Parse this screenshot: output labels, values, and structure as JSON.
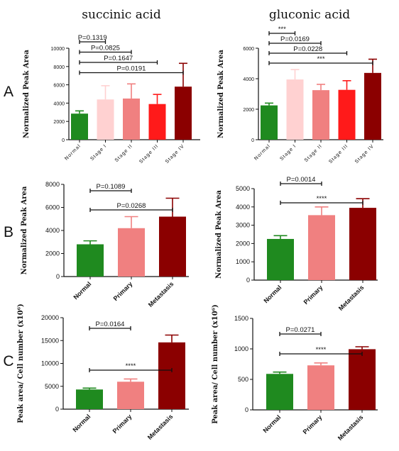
{
  "column_titles": [
    "succinic acid",
    "gluconic acid"
  ],
  "row_labels": [
    "A",
    "B",
    "C"
  ],
  "chart_data": [
    {
      "type": "bar",
      "panel": "A",
      "compound": "succinic acid",
      "categories": [
        "Normal",
        "Stage I",
        "Stage II",
        "Stage III",
        "Stage IV"
      ],
      "values": [
        2850,
        4400,
        4500,
        3900,
        5800
      ],
      "errors": [
        300,
        1500,
        1600,
        1050,
        2550
      ],
      "colors": [
        "#1f8a1f",
        "#ffd1d1",
        "#f08080",
        "#ff1a1a",
        "#8b0000"
      ],
      "ylabel": "Normalized Peak Area",
      "ylim": [
        0,
        10000
      ],
      "yticks": [
        0,
        2000,
        4000,
        6000,
        8000,
        10000
      ],
      "comparisons": [
        {
          "from": 0,
          "to": 1,
          "label": "P=0.1319"
        },
        {
          "from": 0,
          "to": 2,
          "label": "P=0.0825"
        },
        {
          "from": 0,
          "to": 3,
          "label": "P=0.1647"
        },
        {
          "from": 0,
          "to": 4,
          "label": "P=0.0191"
        }
      ]
    },
    {
      "type": "bar",
      "panel": "A",
      "compound": "gluconic acid",
      "categories": [
        "Normal",
        "Stage I",
        "Stage II",
        "Stage III",
        "Stage IV"
      ],
      "values": [
        2250,
        3950,
        3250,
        3270,
        4380
      ],
      "errors": [
        150,
        650,
        380,
        600,
        900
      ],
      "colors": [
        "#1f8a1f",
        "#ffd1d1",
        "#f08080",
        "#ff1a1a",
        "#8b0000"
      ],
      "ylabel": "Normalized Peak Area",
      "ylim": [
        0,
        6000
      ],
      "yticks": [
        0,
        2000,
        4000,
        6000
      ],
      "comparisons": [
        {
          "from": 0,
          "to": 1,
          "label": "***"
        },
        {
          "from": 0,
          "to": 2,
          "label": "P=0.0169"
        },
        {
          "from": 0,
          "to": 3,
          "label": "P=0.0228"
        },
        {
          "from": 0,
          "to": 4,
          "label": "***"
        }
      ]
    },
    {
      "type": "bar",
      "panel": "B",
      "compound": "succinic acid",
      "categories": [
        "Normal",
        "Primary",
        "Metastasis"
      ],
      "values": [
        2800,
        4200,
        5200
      ],
      "errors": [
        300,
        1000,
        1600
      ],
      "colors": [
        "#1f8a1f",
        "#f08080",
        "#8b0000"
      ],
      "ylabel": "Normalized Peak Area",
      "ylim": [
        0,
        8000
      ],
      "yticks": [
        0,
        2000,
        4000,
        6000,
        8000
      ],
      "comparisons": [
        {
          "from": 0,
          "to": 1,
          "label": "P=0.1089"
        },
        {
          "from": 0,
          "to": 2,
          "label": "P=0.0268"
        }
      ]
    },
    {
      "type": "bar",
      "panel": "B",
      "compound": "gluconic acid",
      "categories": [
        "Normal",
        "Primary",
        "Metastasis"
      ],
      "values": [
        2250,
        3550,
        3950
      ],
      "errors": [
        180,
        450,
        500
      ],
      "colors": [
        "#1f8a1f",
        "#f08080",
        "#8b0000"
      ],
      "ylabel": "Normalized Peak Area",
      "ylim": [
        0,
        5000
      ],
      "yticks": [
        0,
        1000,
        2000,
        3000,
        4000,
        5000
      ],
      "comparisons": [
        {
          "from": 0,
          "to": 1,
          "label": "P=0.0014"
        },
        {
          "from": 0,
          "to": 2,
          "label": "****"
        }
      ]
    },
    {
      "type": "bar",
      "panel": "C",
      "compound": "succinic acid",
      "categories": [
        "Normal",
        "Primary",
        "Metastasis"
      ],
      "values": [
        4300,
        6000,
        14600
      ],
      "errors": [
        300,
        600,
        1600
      ],
      "colors": [
        "#1f8a1f",
        "#f08080",
        "#8b0000"
      ],
      "ylabel": "Peak area/ Cell number (x10⁶)",
      "ylim": [
        0,
        20000
      ],
      "yticks": [
        0,
        5000,
        10000,
        15000,
        20000
      ],
      "comparisons": [
        {
          "from": 0,
          "to": 1,
          "label": "P=0.0164"
        },
        {
          "from": 0,
          "to": 2,
          "label": "****"
        }
      ]
    },
    {
      "type": "bar",
      "panel": "C",
      "compound": "gluconic acid",
      "categories": [
        "Normal",
        "Primary",
        "Metastasis"
      ],
      "values": [
        590,
        730,
        995
      ],
      "errors": [
        30,
        40,
        40
      ],
      "colors": [
        "#1f8a1f",
        "#f08080",
        "#8b0000"
      ],
      "ylabel": "Peak area/ Cell number (x10⁶)",
      "ylim": [
        0,
        1500
      ],
      "yticks": [
        0,
        500,
        1000,
        1500
      ],
      "comparisons": [
        {
          "from": 0,
          "to": 1,
          "label": "P=0.0271"
        },
        {
          "from": 0,
          "to": 2,
          "label": "****"
        }
      ]
    }
  ]
}
